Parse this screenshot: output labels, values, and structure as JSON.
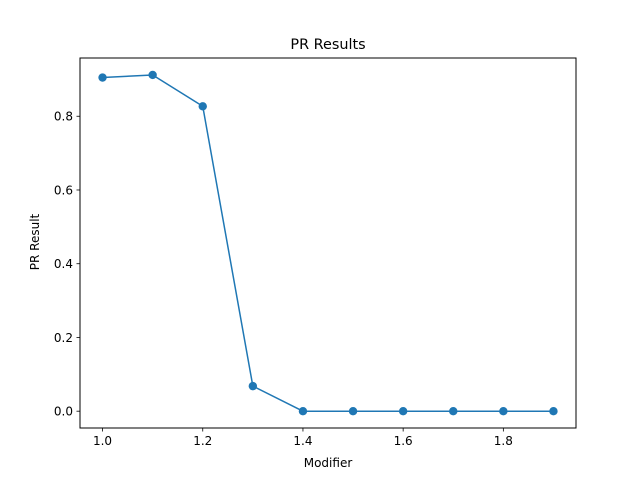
{
  "chart_data": {
    "type": "line",
    "title": "PR Results",
    "xlabel": "Modifier",
    "ylabel": "PR Result",
    "x": [
      1.0,
      1.1,
      1.2,
      1.3,
      1.4,
      1.5,
      1.6,
      1.7,
      1.8,
      1.9
    ],
    "series": [
      {
        "values": [
          0.905,
          0.912,
          0.827,
          0.068,
          0.0,
          0.0,
          0.0,
          0.0,
          0.0,
          0.0
        ],
        "color": "#1f77b4",
        "marker": "circle"
      }
    ],
    "xlim": [
      0.955,
      1.945
    ],
    "ylim": [
      -0.0456,
      0.958
    ],
    "xticks": [
      {
        "value": 1.0,
        "label": "1.0"
      },
      {
        "value": 1.2,
        "label": "1.2"
      },
      {
        "value": 1.4,
        "label": "1.4"
      },
      {
        "value": 1.6,
        "label": "1.6"
      },
      {
        "value": 1.8,
        "label": "1.8"
      }
    ],
    "yticks": [
      {
        "value": 0.0,
        "label": "0.0"
      },
      {
        "value": 0.2,
        "label": "0.2"
      },
      {
        "value": 0.4,
        "label": "0.4"
      },
      {
        "value": 0.6,
        "label": "0.6"
      },
      {
        "value": 0.8,
        "label": "0.8"
      }
    ],
    "grid": false,
    "legend": "none"
  }
}
